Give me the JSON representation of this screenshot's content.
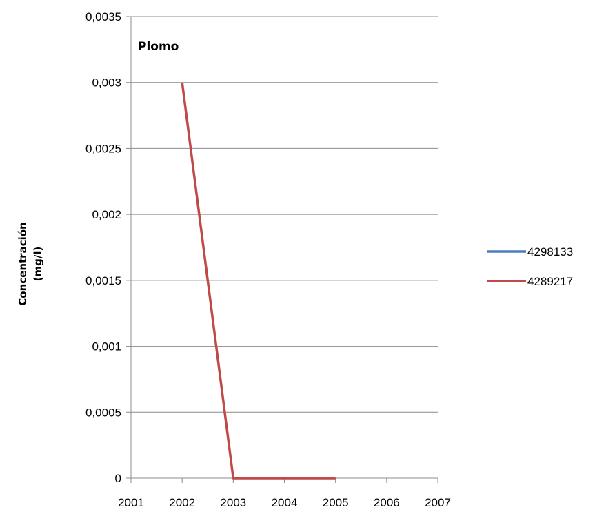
{
  "chart_data": {
    "type": "line",
    "title": "Plomo",
    "ylabel": [
      "Concentración",
      "(mg/l)"
    ],
    "xlabel": "",
    "x": [
      2001,
      2002,
      2003,
      2004,
      2005,
      2006,
      2007
    ],
    "x_tick_labels": [
      "2001",
      "2002",
      "2003",
      "2004",
      "2005",
      "2006",
      "2007"
    ],
    "ylim": [
      0,
      0.0035
    ],
    "y_tick_values": [
      0,
      0.0005,
      0.001,
      0.0015,
      0.002,
      0.0025,
      0.003,
      0.0035
    ],
    "y_tick_labels": [
      "0",
      "0,0005",
      "0,001",
      "0,0015",
      "0,002",
      "0,0025",
      "0,003",
      "0,0035"
    ],
    "grid": true,
    "legend_position": "right",
    "series": [
      {
        "name": "4298133",
        "color": "#4a7ebb",
        "points": []
      },
      {
        "name": "4289217",
        "color": "#be4b48",
        "points": [
          [
            2002,
            0.003
          ],
          [
            2003,
            0
          ],
          [
            2004,
            0
          ],
          [
            2005,
            0
          ]
        ]
      }
    ]
  }
}
